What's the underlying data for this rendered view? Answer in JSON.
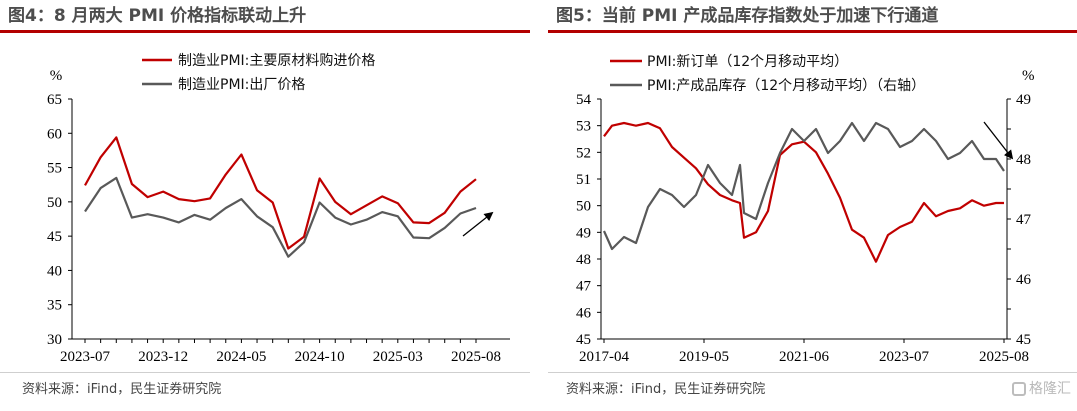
{
  "colors": {
    "red": "#c00000",
    "gray": "#595959",
    "title_rule": "#b30000",
    "title_text": "#4d4d4d"
  },
  "panels": {
    "left": {
      "title": "图4：8 月两大 PMI 价格指标联动上升",
      "source": "资料来源：iFind，民生证券研究院"
    },
    "right": {
      "title": "图5：当前 PMI 产成品库存指数处于加速下行通道",
      "source": "资料来源：iFind，民生证券研究院"
    }
  },
  "watermark": "格隆汇",
  "chart_data": [
    {
      "type": "line",
      "unit_label": "%",
      "ylim": [
        30,
        65
      ],
      "yticks": [
        30,
        35,
        40,
        45,
        50,
        55,
        60,
        65
      ],
      "x_ticklabels": [
        "2023-07",
        "2023-12",
        "2024-05",
        "2024-10",
        "2025-03",
        "2025-08"
      ],
      "x": [
        "2023-07",
        "2023-08",
        "2023-09",
        "2023-10",
        "2023-11",
        "2023-12",
        "2024-01",
        "2024-02",
        "2024-03",
        "2024-04",
        "2024-05",
        "2024-06",
        "2024-07",
        "2024-08",
        "2024-09",
        "2024-10",
        "2024-11",
        "2024-12",
        "2025-01",
        "2025-02",
        "2025-03",
        "2025-04",
        "2025-05",
        "2025-06",
        "2025-07",
        "2025-08"
      ],
      "legend_position": "top-left",
      "series": [
        {
          "name": "制造业PMI:主要原材料购进价格",
          "color": "#c00000",
          "values": [
            52.4,
            56.5,
            59.4,
            52.6,
            50.7,
            51.5,
            50.4,
            50.1,
            50.5,
            54.0,
            56.9,
            51.7,
            49.9,
            43.2,
            44.9,
            53.4,
            50.0,
            48.2,
            49.5,
            50.8,
            49.8,
            47.0,
            46.9,
            48.4,
            51.5,
            53.3
          ]
        },
        {
          "name": "制造业PMI:出厂价格",
          "color": "#595959",
          "values": [
            48.6,
            52.0,
            53.5,
            47.7,
            48.2,
            47.7,
            47.0,
            48.1,
            47.4,
            49.1,
            50.4,
            47.9,
            46.3,
            42.0,
            44.1,
            49.9,
            47.7,
            46.7,
            47.4,
            48.5,
            47.9,
            44.8,
            44.7,
            46.2,
            48.3,
            49.1
          ]
        }
      ],
      "annotation": "arrow-up-right"
    },
    {
      "type": "line",
      "left_unit_label": "%",
      "right_unit_label": "%",
      "ylim_left": [
        45,
        54
      ],
      "ylim_right": [
        45,
        49
      ],
      "yticks_left": [
        45,
        46,
        47,
        48,
        49,
        50,
        51,
        52,
        53,
        54
      ],
      "yticks_right": [
        45,
        45.5,
        46,
        46.5,
        47,
        47.5,
        48,
        48.5,
        49
      ],
      "ytick_labels_right": [
        "45",
        "",
        "46",
        "",
        "47",
        "",
        "48",
        "",
        "49"
      ],
      "x_ticklabels": [
        "2017-04",
        "2019-05",
        "2021-06",
        "2023-07",
        "2025-08"
      ],
      "x_range": [
        "2017-04",
        "2025-08"
      ],
      "legend_position": "top-left",
      "series": [
        {
          "name": "PMI:新订单（12个月移动平均）",
          "axis": "left",
          "color": "#c00000",
          "x": [
            "2017-04",
            "2017-06",
            "2017-09",
            "2017-12",
            "2018-03",
            "2018-06",
            "2018-09",
            "2018-12",
            "2019-03",
            "2019-06",
            "2019-09",
            "2019-12",
            "2020-02",
            "2020-03",
            "2020-06",
            "2020-09",
            "2020-12",
            "2021-03",
            "2021-06",
            "2021-09",
            "2021-12",
            "2022-03",
            "2022-06",
            "2022-09",
            "2022-12",
            "2023-03",
            "2023-06",
            "2023-09",
            "2023-12",
            "2024-03",
            "2024-06",
            "2024-09",
            "2024-12",
            "2025-03",
            "2025-06",
            "2025-08"
          ],
          "values": [
            52.6,
            53.0,
            53.1,
            53.0,
            53.1,
            52.9,
            52.2,
            51.8,
            51.4,
            50.8,
            50.4,
            50.2,
            50.1,
            48.8,
            49.0,
            49.8,
            51.9,
            52.3,
            52.4,
            52.0,
            51.2,
            50.3,
            49.1,
            48.8,
            47.9,
            48.9,
            49.2,
            49.4,
            50.1,
            49.6,
            49.8,
            49.9,
            50.2,
            50.0,
            50.1,
            50.1
          ]
        },
        {
          "name": "PMI:产成品库存（12个月移动平均）（右轴）",
          "axis": "right",
          "color": "#595959",
          "x": [
            "2017-04",
            "2017-06",
            "2017-09",
            "2017-12",
            "2018-03",
            "2018-06",
            "2018-09",
            "2018-12",
            "2019-03",
            "2019-06",
            "2019-09",
            "2019-12",
            "2020-02",
            "2020-03",
            "2020-06",
            "2020-09",
            "2020-12",
            "2021-03",
            "2021-06",
            "2021-09",
            "2021-12",
            "2022-03",
            "2022-06",
            "2022-09",
            "2022-12",
            "2023-03",
            "2023-06",
            "2023-09",
            "2023-12",
            "2024-03",
            "2024-06",
            "2024-09",
            "2024-12",
            "2025-03",
            "2025-06",
            "2025-08"
          ],
          "values": [
            46.8,
            46.5,
            46.7,
            46.6,
            47.2,
            47.5,
            47.4,
            47.2,
            47.4,
            47.9,
            47.6,
            47.4,
            47.9,
            47.1,
            47.0,
            47.6,
            48.1,
            48.5,
            48.3,
            48.5,
            48.1,
            48.3,
            48.6,
            48.3,
            48.6,
            48.5,
            48.2,
            48.3,
            48.5,
            48.3,
            48.0,
            48.1,
            48.3,
            48.0,
            48.0,
            47.8
          ]
        }
      ],
      "annotation": "arrow-down-right"
    }
  ]
}
